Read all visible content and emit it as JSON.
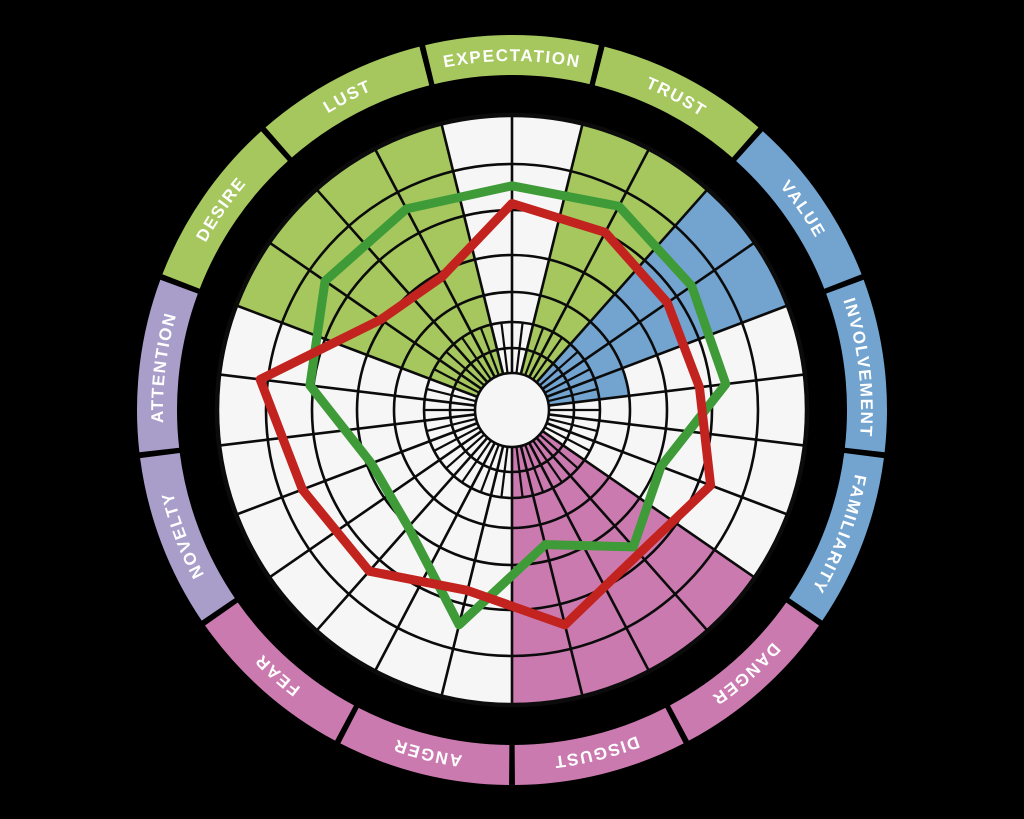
{
  "chart_data": {
    "type": "radar",
    "description": "Circular emotion wheel: polar grid with 13 labeled outer ring segments, colored sector fills and two radar line series",
    "categories": [
      {
        "label": "EXPECTATION",
        "group": "green",
        "fill_level": [
          0,
          0
        ]
      },
      {
        "label": "TRUST",
        "group": "green",
        "fill_level": [
          7,
          7
        ]
      },
      {
        "label": "VALUE",
        "group": "blue",
        "fill_level": [
          7,
          7
        ]
      },
      {
        "label": "INVOLVEMENT",
        "group": "blue",
        "fill_level": [
          3,
          0
        ]
      },
      {
        "label": "FAMILIARITY",
        "group": "blue",
        "fill_level": [
          0,
          0
        ]
      },
      {
        "label": "DANGER",
        "group": "pink",
        "fill_level": [
          7,
          7
        ]
      },
      {
        "label": "DISGUST",
        "group": "pink",
        "fill_level": [
          7,
          7
        ]
      },
      {
        "label": "ANGER",
        "group": "pink",
        "fill_level": [
          0,
          0
        ]
      },
      {
        "label": "FEAR",
        "group": "pink",
        "fill_level": [
          0,
          0
        ]
      },
      {
        "label": "NOVELTY",
        "group": "purple",
        "fill_level": [
          0,
          0
        ]
      },
      {
        "label": "ATTENTION",
        "group": "purple",
        "fill_level": [
          0,
          0
        ]
      },
      {
        "label": "DESIRE",
        "group": "green",
        "fill_level": [
          7,
          7
        ]
      },
      {
        "label": "LUST",
        "group": "green",
        "fill_level": [
          7,
          7
        ]
      }
    ],
    "categories_note": "listed clockwise starting at 12 o'clock; fill_level = colored inner-grid fill height (0-7 rings) for the counterclockwise / clockwise half of each sector",
    "scale": {
      "min": 0,
      "max": 10,
      "grid_rings": 7
    },
    "series": [
      {
        "name": "green-line",
        "color": "#3e9b38",
        "values": [
          7.6,
          7.8,
          7.4,
          7.3,
          5.4,
          6.2,
          4.7,
          7.5,
          5.3,
          5.1,
          6.9,
          7.7,
          7.7
        ]
      },
      {
        "name": "red-line",
        "color": "#c2231e",
        "values": [
          7.0,
          6.8,
          6.4,
          6.4,
          7.2,
          6.5,
          7.5,
          6.3,
          7.3,
          7.6,
          8.6,
          5.4,
          5.1
        ]
      }
    ],
    "palette": {
      "green": "#a5c75e",
      "blue": "#72a4cf",
      "pink": "#cb7ab0",
      "purple": "#a99dca",
      "cell_white": "#f6f6f6",
      "grid_line": "#0b0b0b",
      "label_text": "#ffffff",
      "background": "#000000"
    },
    "layout": {
      "legend": false,
      "outer_label_ring": true,
      "grid": true
    }
  }
}
